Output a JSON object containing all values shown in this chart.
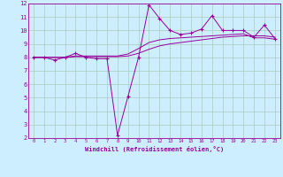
{
  "xlabel": "Windchill (Refroidissement éolien,°C)",
  "bg_color": "#cceeff",
  "grid_color": "#aaccbb",
  "line_color": "#990099",
  "xlim": [
    -0.5,
    23.5
  ],
  "ylim": [
    2,
    12
  ],
  "xticks": [
    0,
    1,
    2,
    3,
    4,
    5,
    6,
    7,
    8,
    9,
    10,
    11,
    12,
    13,
    14,
    15,
    16,
    17,
    18,
    19,
    20,
    21,
    22,
    23
  ],
  "yticks": [
    2,
    3,
    4,
    5,
    6,
    7,
    8,
    9,
    10,
    11,
    12
  ],
  "x": [
    0,
    1,
    2,
    3,
    4,
    5,
    6,
    7,
    8,
    9,
    10,
    11,
    12,
    13,
    14,
    15,
    16,
    17,
    18,
    19,
    20,
    21,
    22,
    23
  ],
  "y_main": [
    8.0,
    8.0,
    7.8,
    8.0,
    8.3,
    8.0,
    7.9,
    7.9,
    2.2,
    5.1,
    8.0,
    11.9,
    10.9,
    10.0,
    9.7,
    9.8,
    10.1,
    11.1,
    10.0,
    10.0,
    10.0,
    9.5,
    10.4,
    9.4
  ],
  "y_trend1": [
    8.0,
    8.0,
    8.0,
    8.0,
    8.05,
    8.05,
    8.05,
    8.05,
    8.05,
    8.1,
    8.3,
    8.6,
    8.85,
    9.0,
    9.1,
    9.2,
    9.3,
    9.4,
    9.5,
    9.55,
    9.6,
    9.6,
    9.6,
    9.5
  ],
  "y_trend2": [
    8.0,
    8.0,
    8.0,
    8.0,
    8.1,
    8.1,
    8.1,
    8.1,
    8.1,
    8.25,
    8.65,
    9.1,
    9.3,
    9.4,
    9.45,
    9.5,
    9.55,
    9.6,
    9.65,
    9.7,
    9.75,
    9.45,
    9.45,
    9.35
  ]
}
